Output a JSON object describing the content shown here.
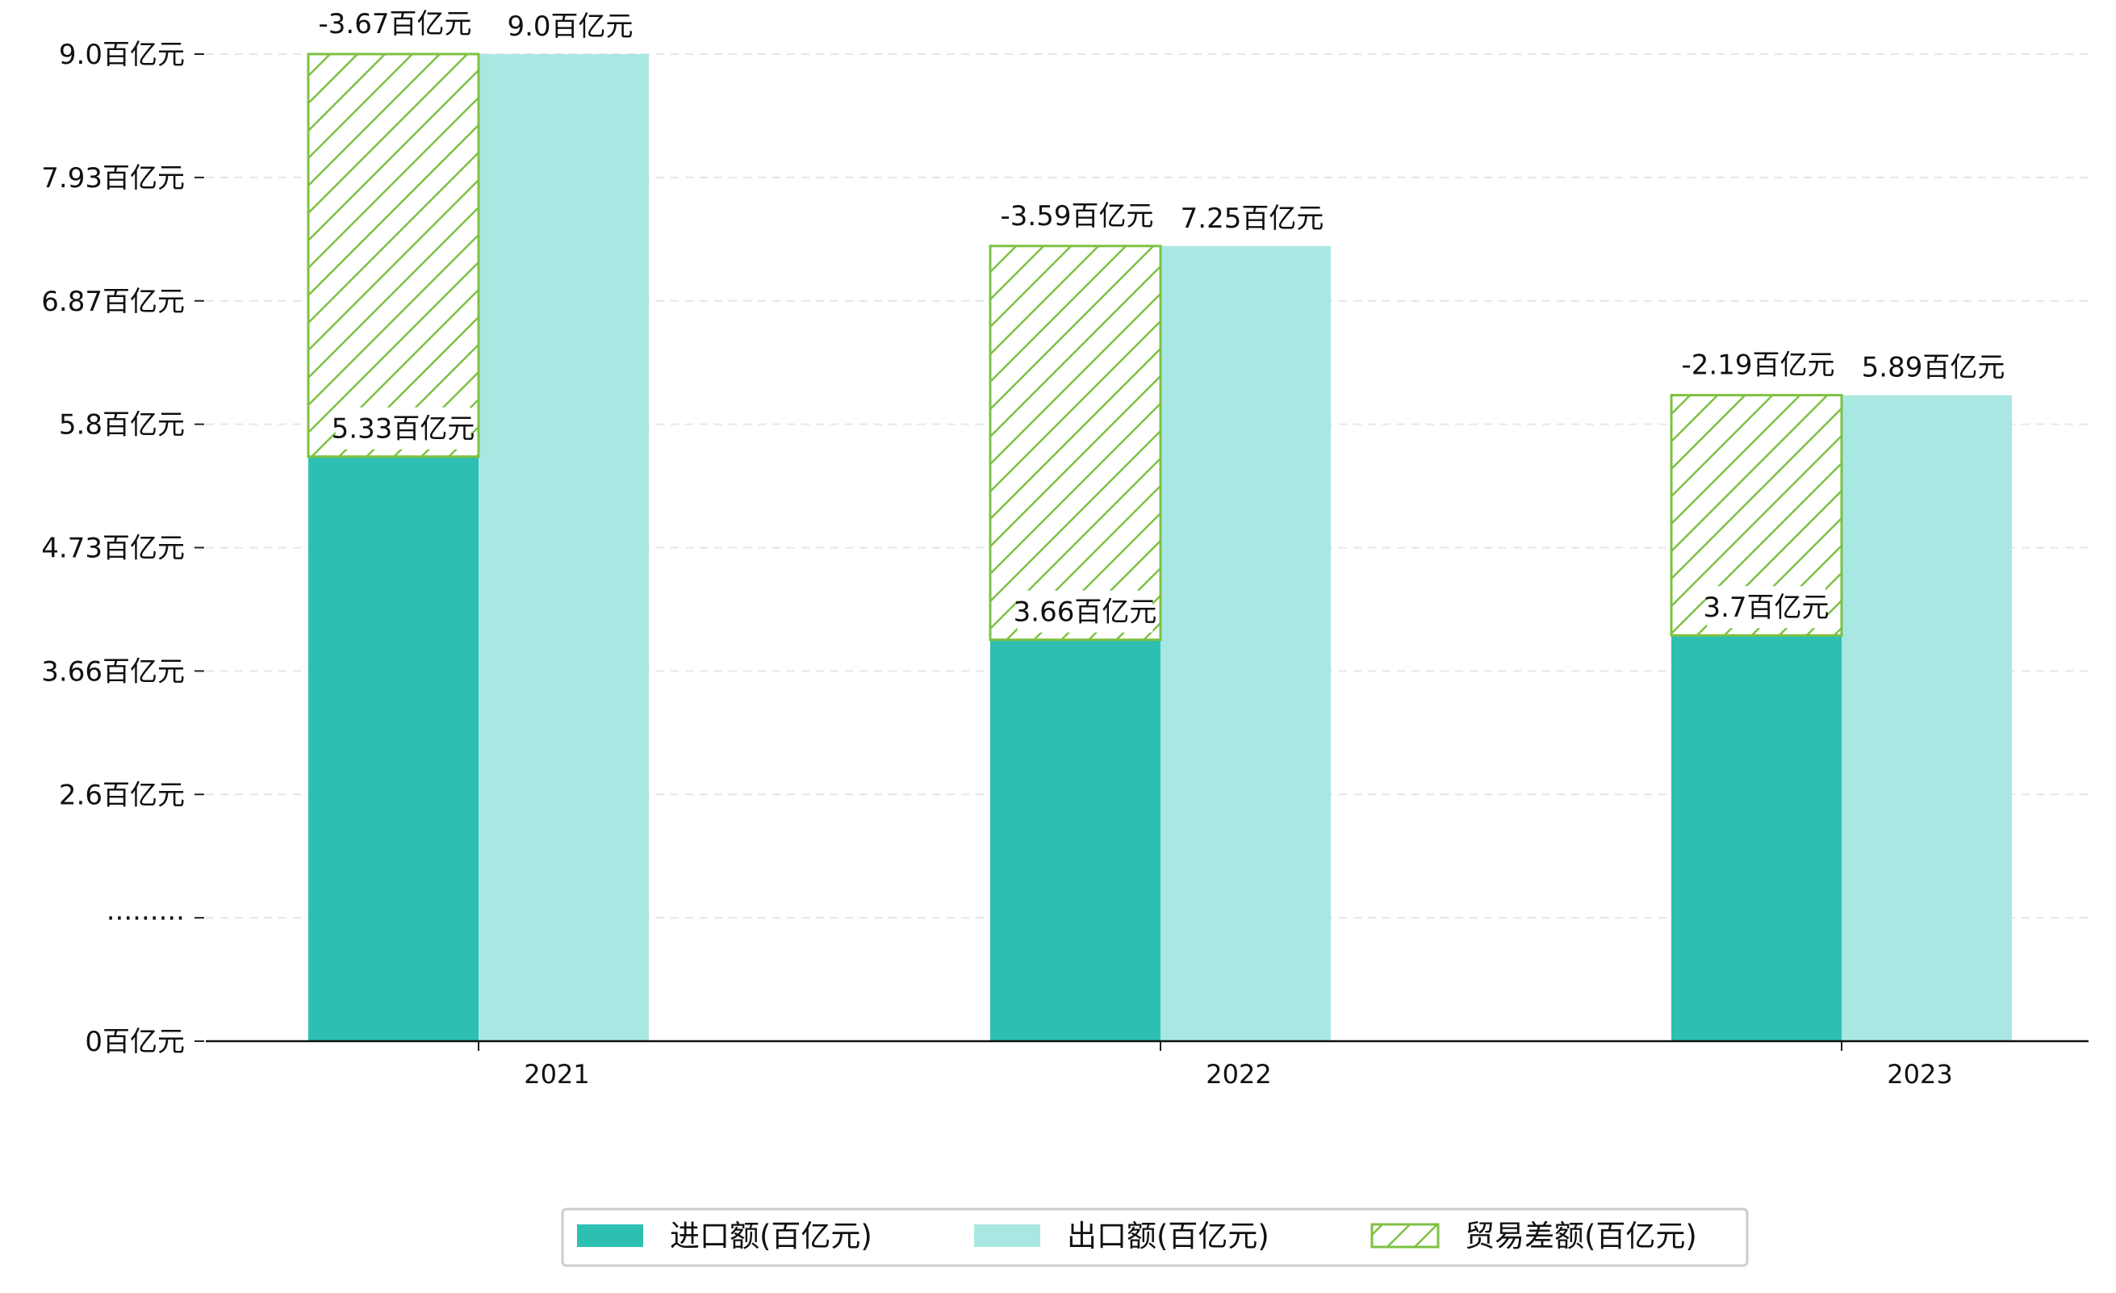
{
  "chart_data": {
    "type": "bar",
    "categories": [
      "2021",
      "2022",
      "2023"
    ],
    "series": [
      {
        "name": "进口额(百亿元)",
        "values": [
          5.33,
          3.66,
          3.7
        ],
        "labels": [
          "5.33百亿元",
          "3.66百亿元",
          "3.7百亿元"
        ],
        "color": "#2ebfb3"
      },
      {
        "name": "出口额(百亿元)",
        "values": [
          9.0,
          7.25,
          5.89
        ],
        "labels": [
          "9.0百亿元",
          "7.25百亿元",
          "5.89百亿元"
        ],
        "color": "#a9e8e2"
      },
      {
        "name": "贸易差额(百亿元)",
        "values": [
          -3.67,
          -3.59,
          -2.19
        ],
        "labels": [
          "-3.67百亿元",
          "-3.59百亿元",
          "-2.19百亿元"
        ],
        "color": "#7dc142",
        "pattern": "hatch"
      }
    ],
    "yticks": [
      "0百亿元",
      "·········",
      "2.6百亿元",
      "3.66百亿元",
      "4.73百亿元",
      "5.8百亿元",
      "6.87百亿元",
      "7.93百亿元",
      "9.0百亿元"
    ],
    "ylim": [
      0,
      9.0
    ],
    "grid": true,
    "legend_position": "bottom-center"
  }
}
